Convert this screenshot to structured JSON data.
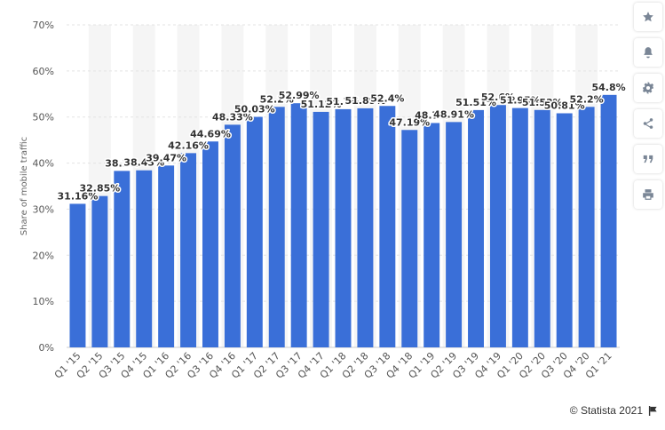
{
  "colors": {
    "bar": "#3a6fd8",
    "grid": "#e3e3e3",
    "band": "#f5f5f5",
    "toolbar_icon": "#7a8696"
  },
  "chart_data": {
    "type": "bar",
    "ylabel": "Share of mobile traffic",
    "ylim": [
      0,
      70
    ],
    "yticks": [
      0,
      10,
      20,
      30,
      40,
      50,
      60,
      70
    ],
    "ytick_labels": [
      "0%",
      "10%",
      "20%",
      "30%",
      "40%",
      "50%",
      "60%",
      "70%"
    ],
    "categories": [
      "Q1 '15",
      "Q2 '15",
      "Q3 '15",
      "Q4 '15",
      "Q1 '16",
      "Q2 '16",
      "Q3 '16",
      "Q4 '16",
      "Q1 '17",
      "Q2 '17",
      "Q3 '17",
      "Q4 '17",
      "Q1 '18",
      "Q2 '18",
      "Q3 '18",
      "Q4 '18",
      "Q1 '19",
      "Q2 '19",
      "Q3 '19",
      "Q4 '19",
      "Q1 '20",
      "Q2 '20",
      "Q3 '20",
      "Q4 '20",
      "Q1 '21"
    ],
    "values": [
      31.16,
      32.85,
      38.3,
      38.43,
      39.47,
      42.16,
      44.69,
      48.33,
      50.03,
      52.2,
      52.99,
      51.12,
      51.7,
      51.89,
      52.4,
      47.19,
      48.7,
      48.91,
      51.51,
      52.6,
      51.95,
      51.53,
      50.81,
      52.2,
      54.8
    ],
    "value_labels": [
      "31.16%",
      "32.85%",
      "38.3%",
      "38.43%",
      "39.47%",
      "42.16%",
      "44.69%",
      "48.33%",
      "50.03%",
      "52.2%",
      "52.99%",
      "51.12%",
      "51.7%",
      "51.89%",
      "52.4%",
      "47.19%",
      "48.7%",
      "48.91%",
      "51.51%",
      "52.6%",
      "51.95%",
      "51.53%",
      "50.81%",
      "52.2%",
      "54.8%"
    ],
    "grid": true,
    "legend": "none"
  },
  "toolbar": {
    "icons": [
      "star-icon",
      "bell-icon",
      "gear-icon",
      "share-icon",
      "quote-icon",
      "print-icon"
    ]
  },
  "credit": {
    "text": "© Statista 2021",
    "flag_icon": "flag-icon"
  }
}
